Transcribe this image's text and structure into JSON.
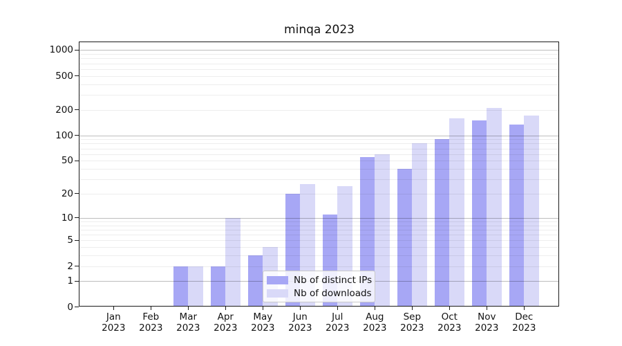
{
  "title": "minqa 2023",
  "legend": {
    "items": [
      {
        "label": "Nb of distinct IPs",
        "color": "#a7a7f5"
      },
      {
        "label": "Nb of downloads",
        "color": "#d9d9f8"
      }
    ]
  },
  "chart_data": {
    "type": "bar",
    "title": "minqa 2023",
    "categories": [
      "Jan 2023",
      "Feb 2023",
      "Mar 2023",
      "Apr 2023",
      "May 2023",
      "Jun 2023",
      "Jul 2023",
      "Aug 2023",
      "Sep 2023",
      "Oct 2023",
      "Nov 2023",
      "Dec 2023"
    ],
    "series": [
      {
        "name": "Nb of distinct IPs",
        "color": "#a7a7f5",
        "values": [
          0,
          0,
          2,
          2,
          3,
          20,
          11,
          55,
          40,
          90,
          150,
          135
        ]
      },
      {
        "name": "Nb of downloads",
        "color": "#d9d9f8",
        "values": [
          0,
          0,
          2,
          10,
          4,
          26,
          25,
          60,
          80,
          160,
          210,
          170
        ]
      }
    ],
    "yscale": "log(x+1)",
    "y_ticks": [
      0,
      1,
      2,
      5,
      10,
      20,
      50,
      100,
      200,
      500,
      1000
    ],
    "ylim": [
      0,
      1260
    ],
    "grid": "horizontal, major at powers of 10, faint minors",
    "legend_position": "inside lower center-right",
    "bar_layout": "grouped pairs per month, dark=IPs left, light=downloads right"
  }
}
